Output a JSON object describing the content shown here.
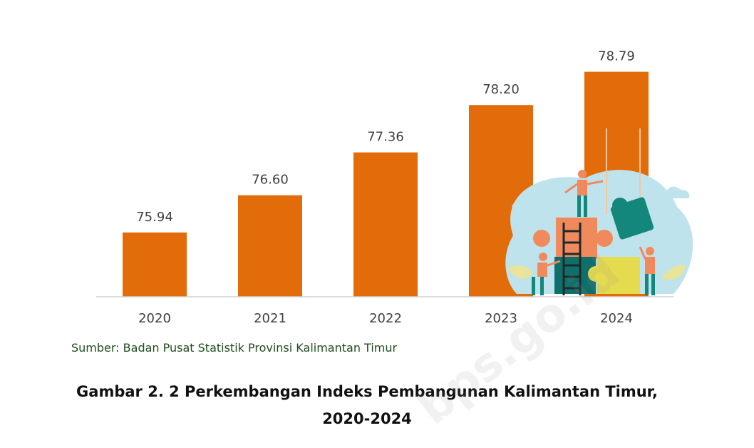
{
  "chart_data": {
    "type": "bar",
    "categories": [
      "2020",
      "2021",
      "2022",
      "2023",
      "2024"
    ],
    "values": [
      75.94,
      76.6,
      77.36,
      78.2,
      78.79
    ],
    "value_labels": [
      "75.94",
      "76.60",
      "77.36",
      "78.20",
      "78.79"
    ],
    "ylim": [
      74.8,
      79.0
    ],
    "bar_color": "#E36C0A",
    "grid": false
  },
  "source_text": "Sumber: Badan Pusat Statistik Provinsi Kalimantan Timur",
  "caption": {
    "line1": "Gambar 2. 2 Perkembangan Indeks Pembangunan Kalimantan Timur,",
    "line2": "2020-2024"
  },
  "watermark": "bps.go.id"
}
